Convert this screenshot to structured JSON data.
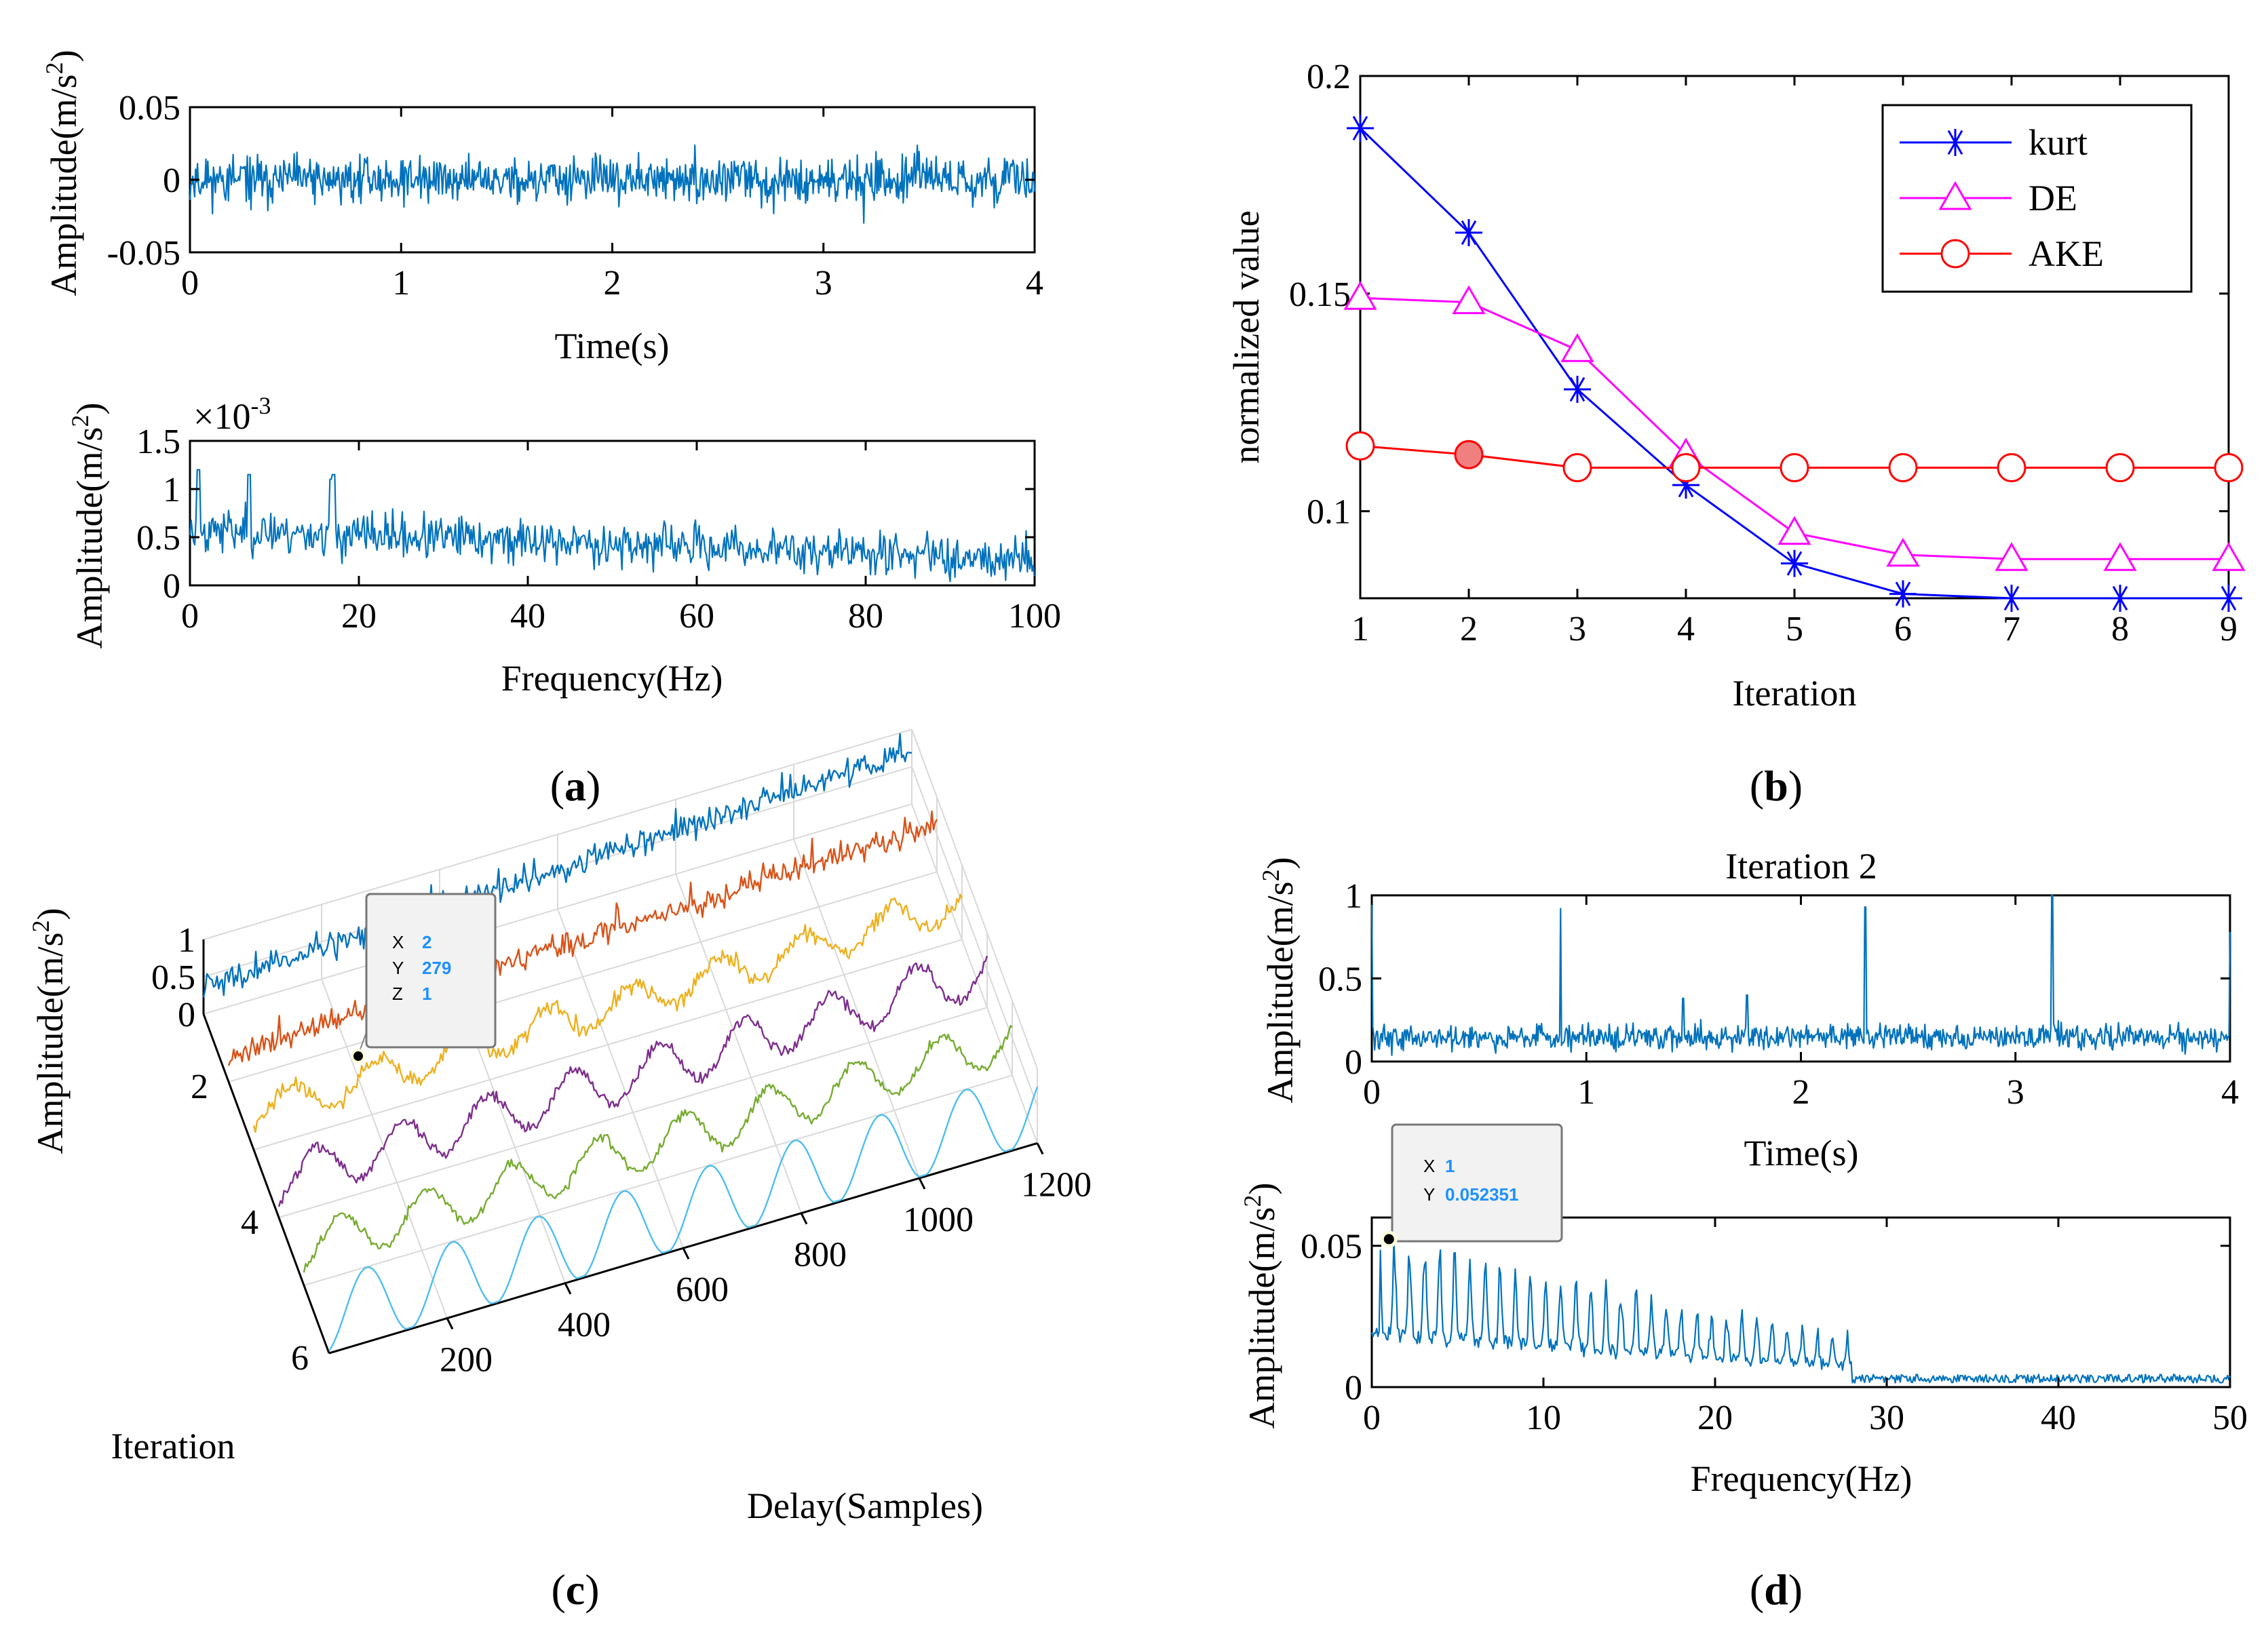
{
  "colors": {
    "matlab_blue": "#0072BD",
    "kurt": "#0000FF",
    "de": "#FF00FF",
    "ake": "#FF0000",
    "tip_value": "#1E90FF",
    "series3d": [
      "#0072BD",
      "#D95319",
      "#EDB120",
      "#7E2F8E",
      "#77AC30",
      "#4DBEEE"
    ]
  },
  "captions": {
    "a": "a",
    "b": "b",
    "c": "c",
    "d": "d"
  },
  "chart_data": [
    {
      "id": "a-top",
      "type": "line",
      "title": "",
      "xlabel": "Time(s)",
      "ylabel": "Amplitude(m/s",
      "ylabel_sup": "2",
      "ylabel_close": ")",
      "xlim": [
        0,
        4
      ],
      "ylim": [
        -0.05,
        0.05
      ],
      "xticks": [
        0,
        1,
        2,
        3,
        4
      ],
      "xtick_labels": [
        "0",
        "1",
        "2",
        "3",
        "4"
      ],
      "yticks": [
        -0.05,
        0,
        0.05
      ],
      "ytick_labels": [
        "-0.05",
        "0",
        "0.05"
      ],
      "signal": {
        "kind": "noise",
        "n": 900,
        "std": 0.011,
        "seed": 11
      }
    },
    {
      "id": "a-bottom",
      "type": "line",
      "title": "",
      "xlabel": "Frequency(Hz)",
      "ylabel": "Amplitude(m/s",
      "ylabel_sup": "2",
      "ylabel_close": ")",
      "exponent_label": "×10",
      "exponent_power": "-3",
      "xlim": [
        0,
        100
      ],
      "ylim": [
        0,
        1.5
      ],
      "xticks": [
        0,
        20,
        40,
        60,
        80,
        100
      ],
      "xtick_labels": [
        "0",
        "20",
        "40",
        "60",
        "80",
        "100"
      ],
      "yticks": [
        0,
        0.5,
        1,
        1.5
      ],
      "ytick_labels": [
        "0",
        "0.5",
        "1",
        "1.5"
      ],
      "signal": {
        "kind": "spectrum_noise",
        "n": 700,
        "start": 0.58,
        "end": 0.28,
        "std": 0.16,
        "peaks": [
          [
            1,
            1.2
          ],
          [
            7,
            1.15
          ],
          [
            17,
            1.15
          ],
          [
            16.6,
            1.1
          ]
        ],
        "seed": 23
      }
    },
    {
      "id": "b",
      "type": "line",
      "title": "",
      "xlabel": "Iteration",
      "ylabel": "normalized value",
      "xlim": [
        1,
        9
      ],
      "ylim": [
        0.08,
        0.2
      ],
      "xticks": [
        1,
        2,
        3,
        4,
        5,
        6,
        7,
        8,
        9
      ],
      "xtick_labels": [
        "1",
        "2",
        "3",
        "4",
        "5",
        "6",
        "7",
        "8",
        "9"
      ],
      "yticks": [
        0.1,
        0.15,
        0.2
      ],
      "ytick_labels": [
        "0.1",
        "0.15",
        "0.2"
      ],
      "legend_position": "top-right",
      "series": [
        {
          "name": "kurt",
          "marker": "star",
          "x": [
            1,
            2,
            3,
            4,
            5,
            6,
            7,
            8,
            9
          ],
          "values": [
            0.188,
            0.164,
            0.128,
            0.106,
            0.088,
            0.081,
            0.08,
            0.08,
            0.08
          ]
        },
        {
          "name": "DE",
          "marker": "triangle",
          "x": [
            1,
            2,
            3,
            4,
            5,
            6,
            7,
            8,
            9
          ],
          "values": [
            0.149,
            0.148,
            0.137,
            0.113,
            0.095,
            0.09,
            0.089,
            0.089,
            0.089
          ]
        },
        {
          "name": "AKE",
          "marker": "circle",
          "x": [
            1,
            2,
            3,
            4,
            5,
            6,
            7,
            8,
            9
          ],
          "values": [
            0.115,
            0.113,
            0.11,
            0.11,
            0.11,
            0.11,
            0.11,
            0.11,
            0.11
          ]
        }
      ]
    },
    {
      "id": "c",
      "type": "line",
      "title": "",
      "xlabel": "Delay(Samples)",
      "ylabel": "Iteration",
      "zlabel": "Amplitude(m/s",
      "zlabel_sup": "2",
      "zlabel_close": ")",
      "xlim": [
        0,
        1200
      ],
      "ylim": [
        1,
        6
      ],
      "zlim": [
        0,
        1
      ],
      "xticks": [
        200,
        400,
        600,
        800,
        1000,
        1200
      ],
      "xtick_labels": [
        "200",
        "400",
        "600",
        "800",
        "1000",
        "1200"
      ],
      "yticks": [
        2,
        4,
        6
      ],
      "ytick_labels": [
        "2",
        "4",
        "6"
      ],
      "zticks": [
        0,
        0.5,
        1
      ],
      "ztick_labels": [
        "0",
        "0.5",
        "1"
      ],
      "series": [
        {
          "name": "Iteration 1",
          "iteration": 1,
          "period": 0,
          "amp": 0.0,
          "noise": 0.13,
          "trend": 0.35,
          "seed": 31
        },
        {
          "name": "Iteration 2",
          "iteration": 2,
          "period": 0,
          "amp": 0.0,
          "noise": 0.12,
          "trend": 0.3,
          "seed": 37
        },
        {
          "name": "Iteration 3",
          "iteration": 3,
          "period": 145,
          "amp": 0.22,
          "noise": 0.08,
          "trend": 0.0,
          "seed": 41
        },
        {
          "name": "Iteration 4",
          "iteration": 4,
          "period": 145,
          "amp": 0.3,
          "noise": 0.06,
          "trend": 0.0,
          "seed": 43
        },
        {
          "name": "Iteration 5",
          "iteration": 5,
          "period": 145,
          "amp": 0.3,
          "noise": 0.05,
          "trend": 0.0,
          "seed": 47
        },
        {
          "name": "Iteration 6",
          "iteration": 6,
          "period": 145,
          "amp": 0.5,
          "noise": 0.0,
          "trend": 0.0,
          "seed": 53
        }
      ],
      "datatip": {
        "x_label": "X",
        "x_value": "2",
        "y_label": "Y",
        "y_value": "279",
        "z_label": "Z",
        "z_value": "1"
      }
    },
    {
      "id": "d-top",
      "type": "line",
      "title": "Iteration 2",
      "xlabel": "Time(s)",
      "ylabel": "Amplitude(m/s",
      "ylabel_sup": "2",
      "ylabel_close": ")",
      "xlim": [
        0,
        4
      ],
      "ylim": [
        0,
        1
      ],
      "xticks": [
        0,
        1,
        2,
        3,
        4
      ],
      "xtick_labels": [
        "0",
        "1",
        "2",
        "3",
        "4"
      ],
      "yticks": [
        0,
        0.5,
        1
      ],
      "ytick_labels": [
        "0",
        "0.5",
        "1"
      ],
      "signal": {
        "kind": "impulses",
        "n": 900,
        "base": 0.15,
        "std": 0.055,
        "peaks": [
          [
            0.0,
            0.95
          ],
          [
            0.88,
            0.92
          ],
          [
            1.45,
            0.38
          ],
          [
            1.75,
            0.4
          ],
          [
            2.3,
            0.93
          ],
          [
            3.17,
            1.0
          ],
          [
            4.0,
            0.78
          ]
        ],
        "seed": 59
      }
    },
    {
      "id": "d-bottom",
      "type": "line",
      "title": "",
      "xlabel": "Frequency(Hz)",
      "ylabel": "Amplitude(m/s",
      "ylabel_sup": "2",
      "ylabel_close": ")",
      "xlim": [
        0,
        50
      ],
      "ylim": [
        0,
        0.06
      ],
      "xticks": [
        0,
        10,
        20,
        30,
        40,
        50
      ],
      "xtick_labels": [
        "0",
        "10",
        "20",
        "30",
        "40",
        "50"
      ],
      "yticks": [
        0,
        0.05
      ],
      "ytick_labels": [
        "0",
        "0.05"
      ],
      "signal": {
        "kind": "comb",
        "n": 700,
        "spacing": 0.88,
        "max": 0.05,
        "decay_end": 28,
        "floor": 0.003,
        "seed": 61
      },
      "datatip": {
        "x_label": "X",
        "x_value": "1",
        "y_label": "Y",
        "y_value": "0.052351",
        "point": [
          1,
          0.052351
        ]
      }
    }
  ]
}
